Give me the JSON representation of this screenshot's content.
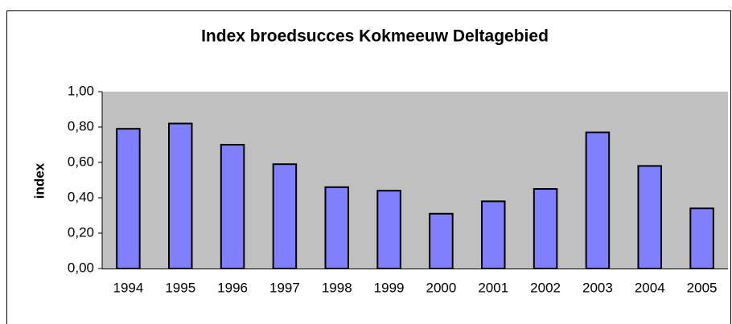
{
  "chart_data": {
    "type": "bar",
    "title": "Index broedsucces Kokmeeuw Deltagebied",
    "y_label": "index",
    "categories": [
      "1994",
      "1995",
      "1996",
      "1997",
      "1998",
      "1999",
      "2000",
      "2001",
      "2002",
      "2003",
      "2004",
      "2005"
    ],
    "values": [
      0.79,
      0.82,
      0.7,
      0.59,
      0.46,
      0.44,
      0.31,
      0.38,
      0.45,
      0.77,
      0.58,
      0.34
    ],
    "color": "#8080ff",
    "plot_background": "#c0c0c0",
    "ylim": [
      0,
      1
    ],
    "yticks": [
      {
        "value": 0,
        "label": "0,00"
      },
      {
        "value": 0.2,
        "label": "0,20"
      },
      {
        "value": 0.4,
        "label": "0,40"
      },
      {
        "value": 0.6,
        "label": "0,60"
      },
      {
        "value": 0.8,
        "label": "0,80"
      },
      {
        "value": 1,
        "label": "1,00"
      }
    ],
    "grid": false
  }
}
